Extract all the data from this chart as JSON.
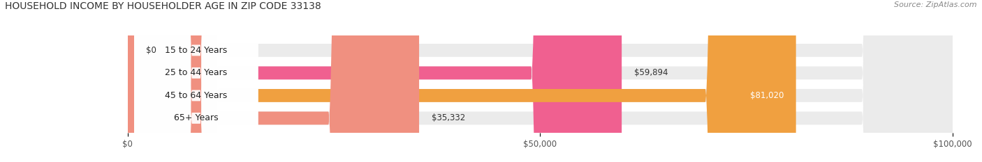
{
  "title": "HOUSEHOLD INCOME BY HOUSEHOLDER AGE IN ZIP CODE 33138",
  "source": "Source: ZipAtlas.com",
  "categories": [
    "15 to 24 Years",
    "25 to 44 Years",
    "45 to 64 Years",
    "65+ Years"
  ],
  "values": [
    0,
    59894,
    81020,
    35332
  ],
  "value_labels": [
    "$0",
    "$59,894",
    "$81,020",
    "$35,332"
  ],
  "bar_colors": [
    "#a8a8d8",
    "#f06090",
    "#f0a040",
    "#f09080"
  ],
  "bar_bg_color": "#ebebeb",
  "label_inside_color": [
    "#333333",
    "#333333",
    "#ffffff",
    "#333333"
  ],
  "xlim": [
    0,
    100000
  ],
  "xticks": [
    0,
    50000,
    100000
  ],
  "xticklabels": [
    "$0",
    "$50,000",
    "$100,000"
  ],
  "background_color": "#ffffff",
  "bar_height": 0.58,
  "figsize": [
    14.06,
    2.33
  ],
  "dpi": 100
}
